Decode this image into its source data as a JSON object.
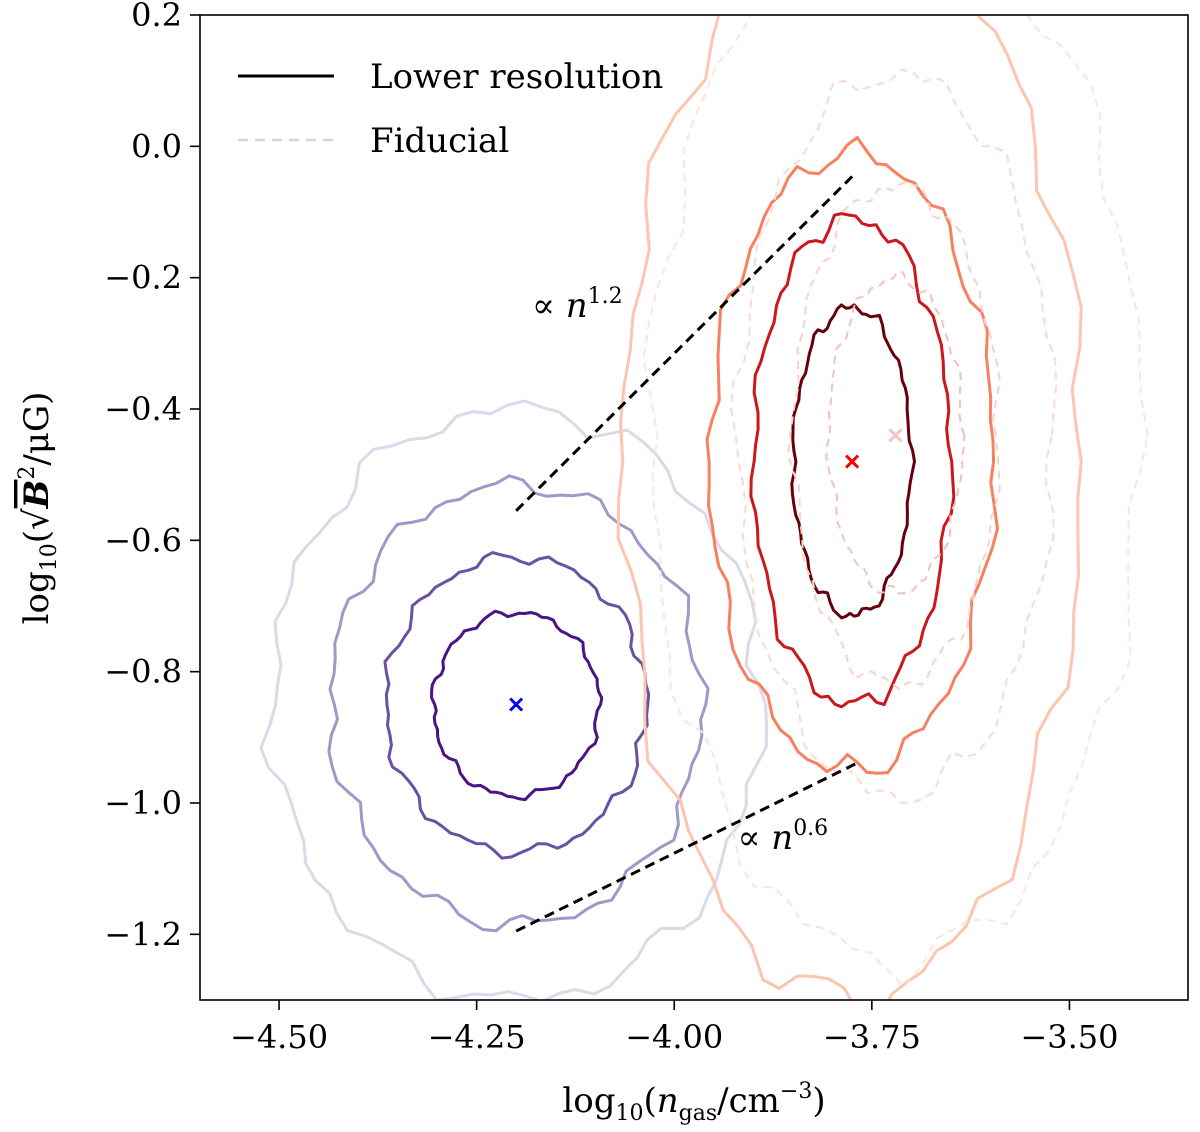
{
  "chart_data": {
    "type": "contour",
    "xlabel": "log10(n_gas/cm^-3)",
    "ylabel": "log10(sqrt(B^2)/μG)",
    "xlim": [
      -4.6,
      -3.35
    ],
    "ylim": [
      -1.3,
      0.2
    ],
    "xticks": [
      -4.5,
      -4.25,
      -4.0,
      -3.75,
      -3.5
    ],
    "xtick_labels": [
      "−4.50",
      "−4.25",
      "−4.00",
      "−3.75",
      "−3.50"
    ],
    "yticks": [
      -1.2,
      -1.0,
      -0.8,
      -0.6,
      -0.4,
      -0.2,
      0.0,
      0.2
    ],
    "ytick_labels": [
      "−1.2",
      "−1.0",
      "−0.8",
      "−0.6",
      "−0.4",
      "−0.2",
      "0.0",
      "0.2"
    ],
    "legend": {
      "placement": "top-left",
      "entries": [
        {
          "label": "Lower resolution",
          "style": "solid",
          "color": "#000000"
        },
        {
          "label": "Fiducial",
          "style": "dashed",
          "color": "#d8d4dc"
        }
      ]
    },
    "populations": [
      {
        "name": "blue",
        "center": {
          "x": -4.2,
          "y": -0.85
        },
        "marker_color": "#0000ff",
        "contours": [
          {
            "level": 1,
            "rx": 0.105,
            "ry": 0.14,
            "color": "#4a1486",
            "style": "solid"
          },
          {
            "level": 2,
            "rx": 0.165,
            "ry": 0.225,
            "color": "#6a51a3",
            "style": "solid"
          },
          {
            "level": 3,
            "rx": 0.235,
            "ry": 0.335,
            "color": "#9e9ac8",
            "style": "solid"
          },
          {
            "level": 4,
            "rx": 0.31,
            "ry": 0.45,
            "color": "#dadaeb",
            "style": "solid"
          }
        ]
      },
      {
        "name": "red-lower-resolution",
        "center": {
          "x": -3.775,
          "y": -0.48
        },
        "marker_color": "#ff0000",
        "contours": [
          {
            "level": 1,
            "rx": 0.075,
            "ry": 0.235,
            "color": "#67000d",
            "style": "solid"
          },
          {
            "level": 2,
            "rx": 0.125,
            "ry": 0.37,
            "color": "#cb181d",
            "style": "solid"
          },
          {
            "level": 3,
            "rx": 0.18,
            "ry": 0.47,
            "color": "#f6815f",
            "style": "solid"
          },
          {
            "level": 4,
            "rx": 0.29,
            "ry": 0.82,
            "color": "#fcc5b0",
            "style": "solid"
          }
        ]
      },
      {
        "name": "red-fiducial",
        "center": {
          "x": -3.72,
          "y": -0.44
        },
        "marker_color": "#f5c5c5",
        "contours": [
          {
            "level": 1,
            "rx": 0.085,
            "ry": 0.24,
            "color": "#f4c0c0",
            "style": "dashed"
          },
          {
            "level": 2,
            "rx": 0.13,
            "ry": 0.38,
            "color": "#f8d0cc",
            "style": "dashed"
          },
          {
            "level": 3,
            "rx": 0.2,
            "ry": 0.55,
            "color": "#fbd9d0",
            "style": "dashed"
          },
          {
            "level": 4,
            "rx": 0.31,
            "ry": 0.8,
            "color": "#fde3da",
            "style": "dashed"
          }
        ]
      }
    ],
    "reference_lines": [
      {
        "label": "∝ n",
        "exponent": "1.2",
        "x": [
          -4.2,
          -3.77
        ],
        "y": [
          -0.555,
          -0.04
        ],
        "label_pos": {
          "x": -4.18,
          "y": -0.26
        }
      },
      {
        "label": "∝ n",
        "exponent": "0.6",
        "x": [
          -4.2,
          -3.77
        ],
        "y": [
          -1.195,
          -0.94
        ],
        "label_pos": {
          "x": -3.92,
          "y": -1.07
        }
      }
    ]
  }
}
